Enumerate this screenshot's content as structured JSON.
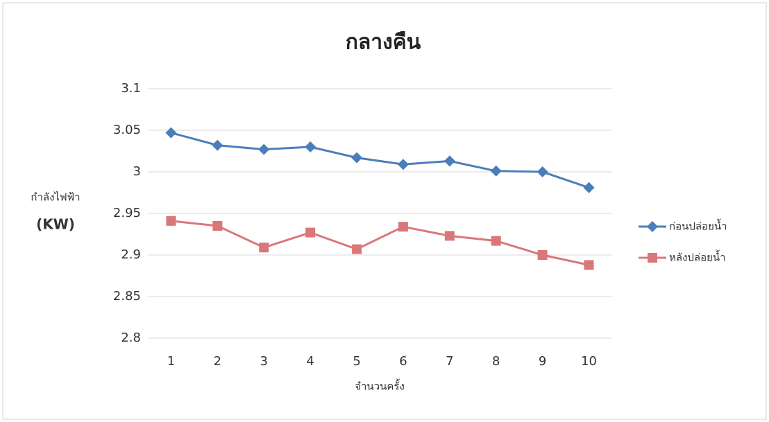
{
  "chart_data": {
    "type": "line",
    "title": "กลางคืน",
    "y_label": "กำลังไฟฟ้า",
    "y_unit": "(KW)",
    "x_label": "จำนวนครั้ง",
    "categories": [
      "1",
      "2",
      "3",
      "4",
      "5",
      "6",
      "7",
      "8",
      "9",
      "10"
    ],
    "series": [
      {
        "name": "ก่อนปล่อยน้ำ",
        "color": "#4a7ebb",
        "marker": "diamond",
        "values": [
          3.047,
          3.032,
          3.027,
          3.03,
          3.017,
          3.009,
          3.013,
          3.001,
          3.0,
          2.981
        ]
      },
      {
        "name": "หลังปล่อยน้ำ",
        "color": "#d9777b",
        "marker": "square",
        "values": [
          2.941,
          2.935,
          2.909,
          2.927,
          2.907,
          2.934,
          2.923,
          2.917,
          2.9,
          2.888
        ]
      }
    ],
    "ylim": [
      2.8,
      3.1
    ],
    "yticks": [
      2.8,
      2.85,
      2.9,
      2.95,
      3,
      3.05,
      3.1
    ],
    "grid": true,
    "legend": "right"
  }
}
